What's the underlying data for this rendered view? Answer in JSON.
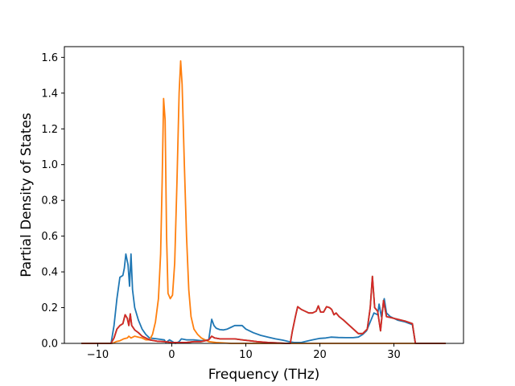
{
  "chart_data": {
    "type": "line",
    "title": "",
    "xlabel": "Frequency (THz)",
    "ylabel": "Partial Density of States",
    "xlim": [
      -14.5,
      39.4
    ],
    "ylim": [
      0,
      1.66
    ],
    "grid": false,
    "legend": "none",
    "x_ticks": [
      -10,
      0,
      10,
      20,
      30
    ],
    "x_tick_labels": [
      "−10",
      "0",
      "10",
      "20",
      "30"
    ],
    "y_ticks": [
      0.0,
      0.2,
      0.4,
      0.6,
      0.8,
      1.0,
      1.2,
      1.4,
      1.6
    ],
    "y_tick_labels": [
      "0.0",
      "0.2",
      "0.4",
      "0.6",
      "0.8",
      "1.0",
      "1.2",
      "1.4",
      "1.6"
    ],
    "series": [
      {
        "color": "#1f77b4",
        "points": [
          [
            -12.2,
            0.0
          ],
          [
            -8.2,
            0.0
          ],
          [
            -7.8,
            0.1
          ],
          [
            -7.4,
            0.25
          ],
          [
            -7.0,
            0.37
          ],
          [
            -6.6,
            0.38
          ],
          [
            -6.4,
            0.42
          ],
          [
            -6.2,
            0.5
          ],
          [
            -5.9,
            0.44
          ],
          [
            -5.7,
            0.32
          ],
          [
            -5.5,
            0.5
          ],
          [
            -5.3,
            0.3
          ],
          [
            -5.0,
            0.2
          ],
          [
            -4.5,
            0.13
          ],
          [
            -4.0,
            0.08
          ],
          [
            -3.5,
            0.05
          ],
          [
            -3.0,
            0.03
          ],
          [
            -2.0,
            0.025
          ],
          [
            -1.0,
            0.02
          ],
          [
            -0.8,
            0.005
          ],
          [
            -0.3,
            0.02
          ],
          [
            0.5,
            0.0
          ],
          [
            1.0,
            0.01
          ],
          [
            1.3,
            0.025
          ],
          [
            2.0,
            0.02
          ],
          [
            3.0,
            0.02
          ],
          [
            4.0,
            0.015
          ],
          [
            5.0,
            0.02
          ],
          [
            5.4,
            0.135
          ],
          [
            5.7,
            0.1
          ],
          [
            6.0,
            0.085
          ],
          [
            6.5,
            0.077
          ],
          [
            7.0,
            0.075
          ],
          [
            7.5,
            0.08
          ],
          [
            8.0,
            0.09
          ],
          [
            8.5,
            0.1
          ],
          [
            9.0,
            0.1
          ],
          [
            9.5,
            0.1
          ],
          [
            10.0,
            0.08
          ],
          [
            11.0,
            0.06
          ],
          [
            12.0,
            0.045
          ],
          [
            13.0,
            0.035
          ],
          [
            14.0,
            0.025
          ],
          [
            15.0,
            0.018
          ],
          [
            15.8,
            0.01
          ],
          [
            16.5,
            0.005
          ],
          [
            17.5,
            0.005
          ],
          [
            19.0,
            0.02
          ],
          [
            20.0,
            0.028
          ],
          [
            20.8,
            0.03
          ],
          [
            21.5,
            0.035
          ],
          [
            22.5,
            0.033
          ],
          [
            23.5,
            0.032
          ],
          [
            24.5,
            0.032
          ],
          [
            25.2,
            0.035
          ],
          [
            25.8,
            0.05
          ],
          [
            26.3,
            0.07
          ],
          [
            26.8,
            0.12
          ],
          [
            27.3,
            0.17
          ],
          [
            27.8,
            0.16
          ],
          [
            28.0,
            0.22
          ],
          [
            28.3,
            0.15
          ],
          [
            28.7,
            0.25
          ],
          [
            29.0,
            0.17
          ],
          [
            29.5,
            0.15
          ],
          [
            30.5,
            0.13
          ],
          [
            31.5,
            0.12
          ],
          [
            32.5,
            0.105
          ],
          [
            32.9,
            0.0
          ],
          [
            37.0,
            0.0
          ]
        ]
      },
      {
        "color": "#ff7f0e",
        "points": [
          [
            -12.2,
            0.0
          ],
          [
            -8.0,
            0.0
          ],
          [
            -7.5,
            0.01
          ],
          [
            -7.0,
            0.015
          ],
          [
            -6.5,
            0.025
          ],
          [
            -6.0,
            0.03
          ],
          [
            -5.8,
            0.04
          ],
          [
            -5.5,
            0.03
          ],
          [
            -5.0,
            0.04
          ],
          [
            -4.5,
            0.035
          ],
          [
            -4.0,
            0.03
          ],
          [
            -3.5,
            0.02
          ],
          [
            -3.0,
            0.02
          ],
          [
            -2.6,
            0.05
          ],
          [
            -2.2,
            0.12
          ],
          [
            -1.8,
            0.25
          ],
          [
            -1.5,
            0.5
          ],
          [
            -1.3,
            0.9
          ],
          [
            -1.1,
            1.37
          ],
          [
            -0.9,
            1.25
          ],
          [
            -0.7,
            0.6
          ],
          [
            -0.5,
            0.28
          ],
          [
            -0.2,
            0.25
          ],
          [
            0.1,
            0.27
          ],
          [
            0.4,
            0.45
          ],
          [
            0.7,
            0.9
          ],
          [
            1.0,
            1.4
          ],
          [
            1.2,
            1.58
          ],
          [
            1.4,
            1.45
          ],
          [
            1.7,
            1.0
          ],
          [
            2.0,
            0.6
          ],
          [
            2.3,
            0.3
          ],
          [
            2.6,
            0.15
          ],
          [
            3.0,
            0.08
          ],
          [
            3.5,
            0.05
          ],
          [
            4.0,
            0.03
          ],
          [
            5.0,
            0.01
          ],
          [
            6.0,
            0.005
          ],
          [
            8.0,
            0.0
          ],
          [
            37.0,
            0.0
          ]
        ]
      },
      {
        "color": "#2ca02c",
        "points": [
          [
            -12.2,
            0.0
          ],
          [
            -8.2,
            0.0
          ],
          [
            -7.8,
            0.03
          ],
          [
            -7.4,
            0.08
          ],
          [
            -7.0,
            0.1
          ],
          [
            -6.6,
            0.11
          ],
          [
            -6.3,
            0.16
          ],
          [
            -6.0,
            0.14
          ],
          [
            -5.8,
            0.1
          ],
          [
            -5.6,
            0.165
          ],
          [
            -5.4,
            0.1
          ],
          [
            -5.0,
            0.075
          ],
          [
            -4.5,
            0.06
          ],
          [
            -4.0,
            0.04
          ],
          [
            -3.5,
            0.03
          ],
          [
            -3.0,
            0.02
          ],
          [
            -2.0,
            0.012
          ],
          [
            -1.0,
            0.01
          ],
          [
            0.0,
            0.005
          ],
          [
            1.0,
            0.005
          ],
          [
            2.0,
            0.005
          ],
          [
            3.0,
            0.01
          ],
          [
            4.0,
            0.01
          ],
          [
            5.0,
            0.02
          ],
          [
            5.4,
            0.04
          ],
          [
            5.8,
            0.03
          ],
          [
            6.5,
            0.025
          ],
          [
            7.5,
            0.025
          ],
          [
            8.5,
            0.025
          ],
          [
            9.5,
            0.02
          ],
          [
            10.5,
            0.015
          ],
          [
            11.5,
            0.01
          ],
          [
            13.0,
            0.005
          ],
          [
            14.0,
            0.003
          ],
          [
            15.5,
            0.0
          ],
          [
            16.0,
            0.0
          ],
          [
            16.3,
            0.07
          ],
          [
            16.7,
            0.15
          ],
          [
            17.0,
            0.205
          ],
          [
            17.5,
            0.19
          ],
          [
            18.0,
            0.18
          ],
          [
            18.5,
            0.17
          ],
          [
            19.0,
            0.17
          ],
          [
            19.5,
            0.18
          ],
          [
            19.8,
            0.21
          ],
          [
            20.1,
            0.175
          ],
          [
            20.5,
            0.175
          ],
          [
            20.9,
            0.205
          ],
          [
            21.3,
            0.2
          ],
          [
            21.6,
            0.19
          ],
          [
            21.9,
            0.16
          ],
          [
            22.2,
            0.17
          ],
          [
            22.6,
            0.15
          ],
          [
            23.2,
            0.13
          ],
          [
            24.0,
            0.1
          ],
          [
            24.8,
            0.07
          ],
          [
            25.2,
            0.055
          ],
          [
            25.8,
            0.055
          ],
          [
            26.4,
            0.08
          ],
          [
            26.8,
            0.2
          ],
          [
            27.1,
            0.375
          ],
          [
            27.4,
            0.2
          ],
          [
            27.8,
            0.18
          ],
          [
            28.2,
            0.07
          ],
          [
            28.6,
            0.24
          ],
          [
            29.0,
            0.15
          ],
          [
            29.5,
            0.145
          ],
          [
            30.5,
            0.135
          ],
          [
            31.5,
            0.125
          ],
          [
            32.5,
            0.11
          ],
          [
            32.9,
            0.0
          ],
          [
            37.0,
            0.0
          ]
        ]
      },
      {
        "color": "#d62728",
        "points": [
          [
            -12.2,
            0.0
          ],
          [
            -8.2,
            0.0
          ],
          [
            -7.8,
            0.03
          ],
          [
            -7.4,
            0.08
          ],
          [
            -7.0,
            0.1
          ],
          [
            -6.6,
            0.11
          ],
          [
            -6.3,
            0.16
          ],
          [
            -6.0,
            0.14
          ],
          [
            -5.8,
            0.1
          ],
          [
            -5.6,
            0.165
          ],
          [
            -5.4,
            0.1
          ],
          [
            -5.0,
            0.075
          ],
          [
            -4.5,
            0.06
          ],
          [
            -4.0,
            0.04
          ],
          [
            -3.5,
            0.03
          ],
          [
            -3.0,
            0.02
          ],
          [
            -2.0,
            0.012
          ],
          [
            -1.0,
            0.01
          ],
          [
            0.0,
            0.005
          ],
          [
            1.0,
            0.005
          ],
          [
            2.0,
            0.005
          ],
          [
            3.0,
            0.01
          ],
          [
            4.0,
            0.01
          ],
          [
            5.0,
            0.02
          ],
          [
            5.4,
            0.04
          ],
          [
            5.8,
            0.03
          ],
          [
            6.5,
            0.025
          ],
          [
            7.5,
            0.025
          ],
          [
            8.5,
            0.025
          ],
          [
            9.5,
            0.02
          ],
          [
            10.5,
            0.015
          ],
          [
            11.5,
            0.01
          ],
          [
            13.0,
            0.005
          ],
          [
            14.0,
            0.003
          ],
          [
            15.5,
            0.0
          ],
          [
            16.0,
            0.0
          ],
          [
            16.3,
            0.07
          ],
          [
            16.7,
            0.15
          ],
          [
            17.0,
            0.205
          ],
          [
            17.5,
            0.19
          ],
          [
            18.0,
            0.18
          ],
          [
            18.5,
            0.17
          ],
          [
            19.0,
            0.17
          ],
          [
            19.5,
            0.18
          ],
          [
            19.8,
            0.21
          ],
          [
            20.1,
            0.175
          ],
          [
            20.5,
            0.175
          ],
          [
            20.9,
            0.205
          ],
          [
            21.3,
            0.2
          ],
          [
            21.6,
            0.19
          ],
          [
            21.9,
            0.16
          ],
          [
            22.2,
            0.17
          ],
          [
            22.6,
            0.15
          ],
          [
            23.2,
            0.13
          ],
          [
            24.0,
            0.1
          ],
          [
            24.8,
            0.07
          ],
          [
            25.2,
            0.055
          ],
          [
            25.8,
            0.055
          ],
          [
            26.4,
            0.08
          ],
          [
            26.8,
            0.2
          ],
          [
            27.1,
            0.375
          ],
          [
            27.4,
            0.2
          ],
          [
            27.8,
            0.18
          ],
          [
            28.2,
            0.07
          ],
          [
            28.6,
            0.24
          ],
          [
            29.0,
            0.15
          ],
          [
            29.5,
            0.145
          ],
          [
            30.5,
            0.135
          ],
          [
            31.5,
            0.125
          ],
          [
            32.5,
            0.11
          ],
          [
            32.9,
            0.0
          ],
          [
            37.0,
            0.0
          ]
        ]
      }
    ]
  }
}
